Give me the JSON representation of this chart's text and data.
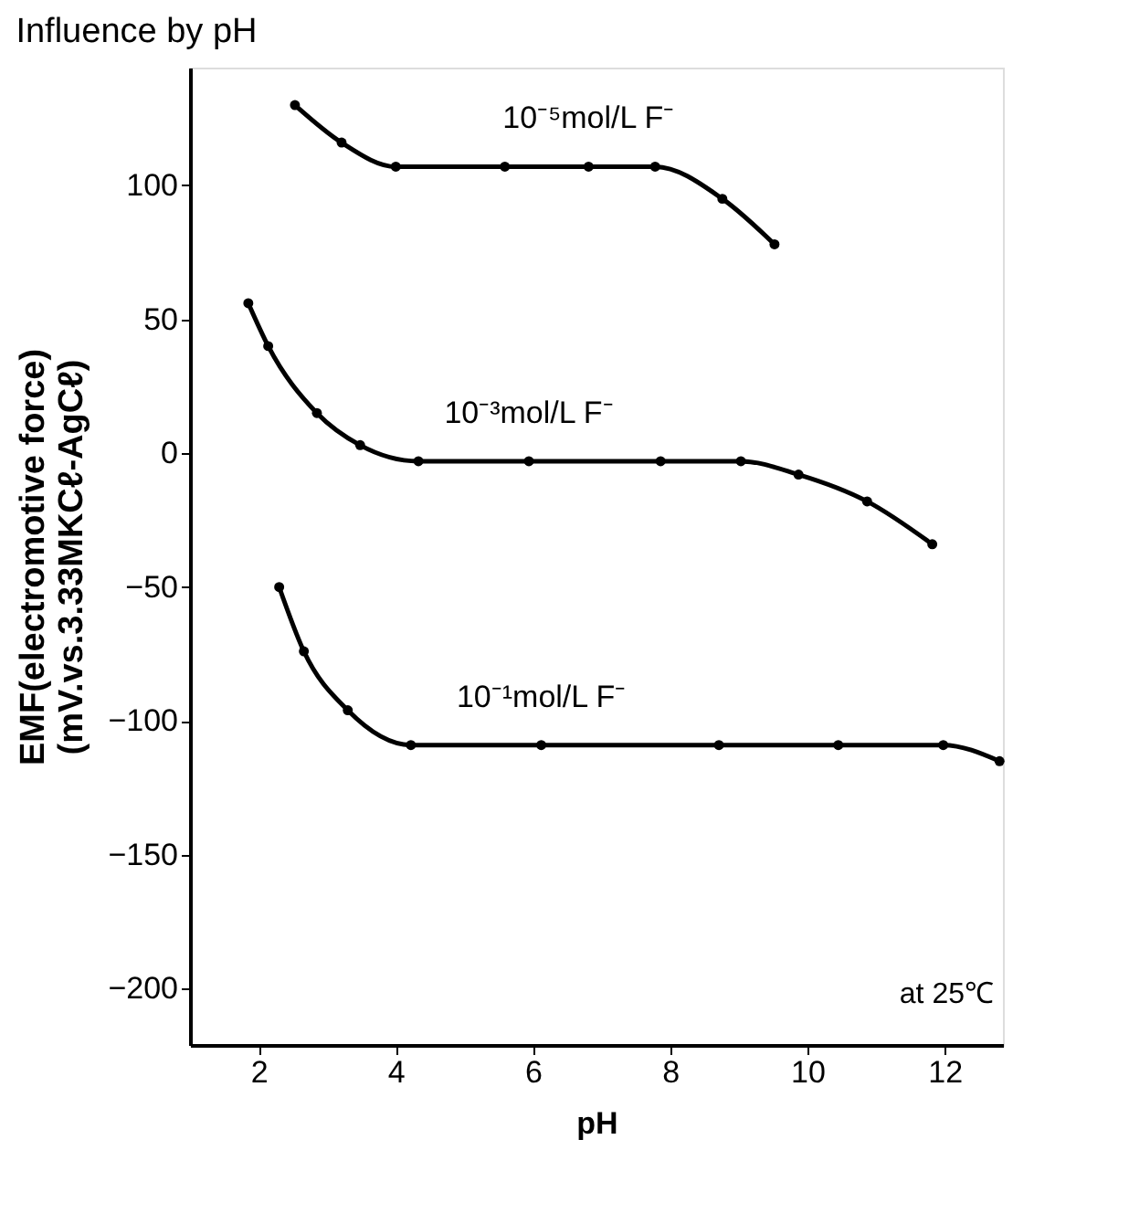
{
  "chart_data": {
    "type": "line",
    "title": "Influence by pH",
    "xlabel": "pH",
    "ylabel": "EMF(electromotive force)\n(mV.vs.3.33MKCℓ-AgCℓ)",
    "xlim": [
      1.0,
      12.85
    ],
    "ylim": [
      -221,
      144
    ],
    "xticks": [
      2,
      4,
      6,
      8,
      10,
      12
    ],
    "yticks": [
      -200,
      -150,
      -100,
      -50,
      0,
      50,
      100
    ],
    "grid": false,
    "legend": false,
    "marker": "circle",
    "line_style": "solid",
    "series": [
      {
        "name": "10⁻⁵mol/L F⁻",
        "color": "#000000",
        "x": [
          2.53,
          3.21,
          4.0,
          5.59,
          6.81,
          7.78,
          8.76,
          9.52
        ],
        "values": [
          130,
          116,
          107,
          107,
          107,
          107,
          95,
          78
        ]
      },
      {
        "name": "10⁻³mol/L F⁻",
        "color": "#000000",
        "x": [
          1.85,
          2.14,
          2.85,
          3.48,
          4.33,
          5.94,
          7.86,
          9.03,
          9.87,
          10.87,
          11.82
        ],
        "values": [
          56,
          40,
          15,
          3,
          -3,
          -3,
          -3,
          -3,
          -8,
          -18,
          -34
        ]
      },
      {
        "name": "10⁻¹mol/L F⁻",
        "color": "#000000",
        "x": [
          2.3,
          2.66,
          3.3,
          4.22,
          6.12,
          8.71,
          10.45,
          11.98,
          12.8
        ],
        "values": [
          -50,
          -74,
          -96,
          -109,
          -109,
          -109,
          -109,
          -109,
          -115
        ]
      }
    ],
    "annotations": [
      "at 25℃"
    ]
  }
}
